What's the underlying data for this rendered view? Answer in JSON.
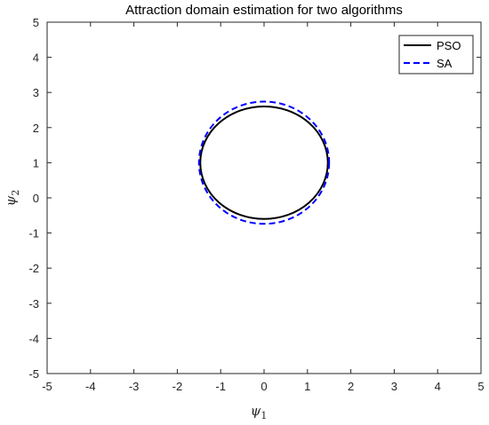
{
  "chart_data": {
    "type": "line",
    "title": "Attraction domain estimation for two algorithms",
    "xlabel": "ψ",
    "xlabel_sub": "1",
    "ylabel": "ψ",
    "ylabel_sub": "2",
    "xlim": [
      -5,
      5
    ],
    "ylim": [
      -5,
      5
    ],
    "xticks": [
      "-5",
      "-4",
      "-3",
      "-2",
      "-1",
      "0",
      "1",
      "2",
      "3",
      "4",
      "5"
    ],
    "yticks": [
      "-5",
      "-4",
      "-3",
      "-2",
      "-1",
      "0",
      "1",
      "2",
      "3",
      "4",
      "5"
    ],
    "grid": false,
    "legend_position": "top-right",
    "series": [
      {
        "name": "PSO",
        "shape": "ellipse",
        "center": [
          0,
          1.0
        ],
        "radius_x": 1.47,
        "radius_y": 1.6,
        "color": "#000000",
        "style": "solid"
      },
      {
        "name": "SA",
        "shape": "ellipse",
        "center": [
          0,
          1.0
        ],
        "radius_x": 1.5,
        "radius_y": 1.74,
        "color": "#0000ff",
        "style": "dashed"
      }
    ]
  }
}
